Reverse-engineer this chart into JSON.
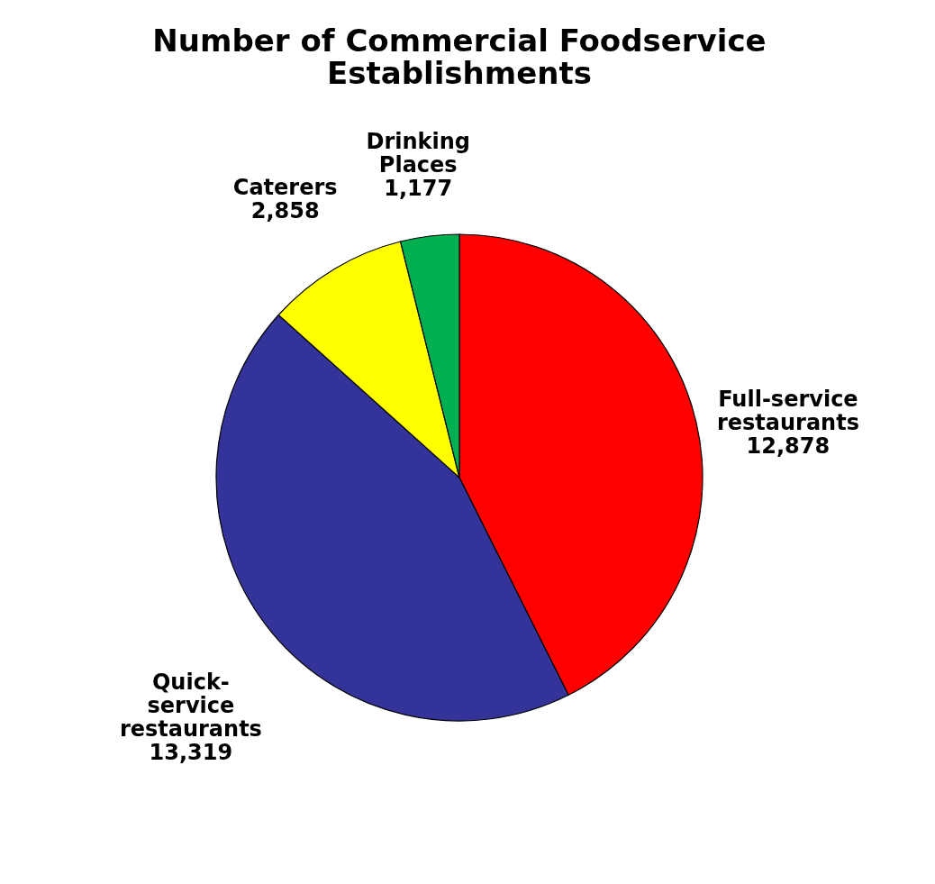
{
  "chart_data": {
    "type": "pie",
    "title": "Number of Commercial Foodservice\nEstablishments",
    "categories": [
      "Full-service\nrestaurants",
      "Quick-\nservice\nrestaurants",
      "Caterers",
      "Drinking\nPlaces"
    ],
    "values": [
      12878,
      13319,
      2858,
      1177
    ],
    "colors": [
      "#ff0000",
      "#333399",
      "#ffff00",
      "#00b050"
    ],
    "value_labels": [
      "12,878",
      "13,319",
      "2,858",
      "1,177"
    ],
    "legend": false
  }
}
